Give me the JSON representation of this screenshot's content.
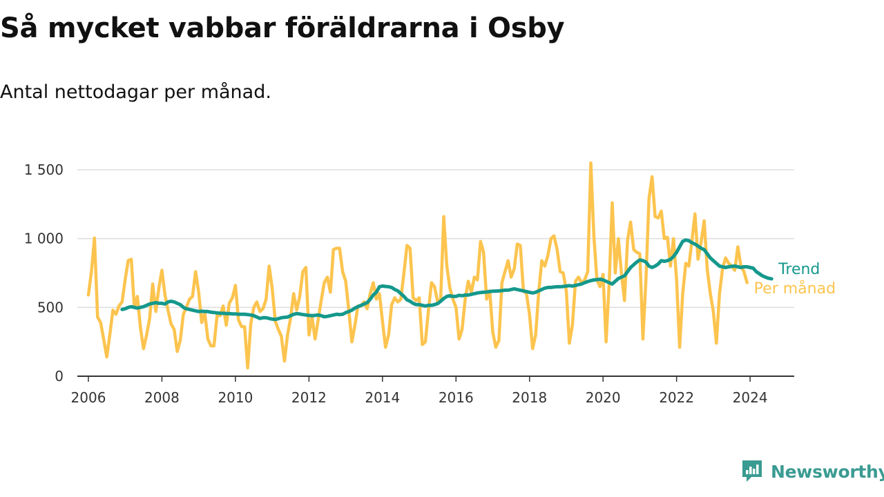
{
  "title": "Så mycket vabbar föräldrarna i Osby",
  "subtitle": "Antal nettodagar per månad.",
  "brand": {
    "name": "Newsworthy",
    "icon": "newsworthy-logo-icon"
  },
  "colors": {
    "monthly": "#fcc44f",
    "trend": "#15988c",
    "grid": "#dddddd",
    "axis": "#333333"
  },
  "chart_data": {
    "type": "line",
    "title": "Så mycket vabbar föräldrarna i Osby",
    "subtitle": "Antal nettodagar per månad.",
    "xlabel": "",
    "ylabel": "",
    "xlim": [
      2005.7,
      2025.2
    ],
    "ylim": [
      0,
      1500
    ],
    "x_ticks": [
      2006,
      2008,
      2010,
      2012,
      2014,
      2016,
      2018,
      2020,
      2022,
      2024
    ],
    "x_tick_labels": [
      "2006",
      "2008",
      "2010",
      "2012",
      "2014",
      "2016",
      "2018",
      "2020",
      "2022",
      "2024"
    ],
    "y_ticks": [
      0,
      500,
      1000,
      1500
    ],
    "y_tick_labels": [
      "0",
      "500",
      "1 000",
      "1 500"
    ],
    "grid": true,
    "legend": "direct labels at line ends (right)",
    "series": [
      {
        "name": "Per månad",
        "color": "#fcc44f",
        "start": 2006.0,
        "step": 0.083333,
        "values": [
          590,
          760,
          1005,
          430,
          390,
          270,
          140,
          300,
          480,
          450,
          510,
          540,
          700,
          840,
          850,
          500,
          580,
          350,
          200,
          300,
          420,
          670,
          470,
          640,
          770,
          590,
          480,
          380,
          340,
          180,
          260,
          450,
          500,
          560,
          580,
          760,
          610,
          390,
          460,
          270,
          220,
          220,
          440,
          440,
          510,
          370,
          530,
          570,
          660,
          410,
          360,
          360,
          60,
          380,
          500,
          540,
          470,
          490,
          560,
          800,
          640,
          400,
          340,
          290,
          110,
          300,
          420,
          600,
          480,
          580,
          760,
          790,
          300,
          430,
          270,
          410,
          550,
          680,
          720,
          610,
          920,
          930,
          930,
          760,
          690,
          480,
          250,
          370,
          510,
          510,
          540,
          490,
          600,
          680,
          560,
          600,
          400,
          210,
          300,
          520,
          570,
          540,
          560,
          750,
          950,
          930,
          570,
          550,
          570,
          230,
          250,
          480,
          680,
          650,
          540,
          560,
          1160,
          800,
          640,
          560,
          500,
          270,
          340,
          560,
          690,
          610,
          720,
          700,
          980,
          900,
          560,
          620,
          320,
          210,
          260,
          680,
          760,
          840,
          720,
          780,
          960,
          950,
          620,
          600,
          450,
          200,
          300,
          610,
          840,
          800,
          880,
          1000,
          1020,
          920,
          760,
          750,
          620,
          240,
          370,
          690,
          720,
          680,
          700,
          760,
          1550,
          1020,
          700,
          650,
          740,
          250,
          680,
          1260,
          750,
          1000,
          750,
          550,
          990,
          1120,
          920,
          900,
          890,
          270,
          700,
          1290,
          1450,
          1160,
          1150,
          1200,
          1000,
          1010,
          800,
          1000,
          700,
          210,
          600,
          820,
          800,
          980,
          1180,
          850,
          970,
          1130,
          780,
          600,
          470,
          240,
          600,
          780,
          860,
          820,
          800,
          770,
          940,
          800,
          760,
          680
        ]
      },
      {
        "name": "Trend",
        "color": "#15988c",
        "start": 2006.9167,
        "step": 0.083333,
        "values": [
          485,
          490,
          500,
          505,
          500,
          495,
          500,
          505,
          515,
          525,
          530,
          535,
          530,
          530,
          525,
          540,
          545,
          540,
          530,
          520,
          500,
          490,
          485,
          480,
          475,
          470,
          472,
          470,
          470,
          465,
          463,
          460,
          458,
          457,
          455,
          455,
          453,
          453,
          450,
          450,
          450,
          448,
          445,
          440,
          430,
          420,
          425,
          425,
          420,
          415,
          413,
          418,
          425,
          428,
          430,
          440,
          450,
          455,
          452,
          448,
          445,
          442,
          440,
          442,
          445,
          440,
          432,
          435,
          440,
          445,
          450,
          448,
          450,
          462,
          470,
          480,
          495,
          505,
          515,
          525,
          535,
          560,
          590,
          610,
          650,
          655,
          652,
          650,
          645,
          630,
          620,
          600,
          580,
          555,
          545,
          530,
          520,
          520,
          515,
          510,
          515,
          515,
          520,
          528,
          545,
          565,
          580,
          585,
          580,
          580,
          588,
          585,
          590,
          590,
          595,
          600,
          605,
          608,
          610,
          612,
          615,
          618,
          618,
          620,
          622,
          625,
          625,
          630,
          635,
          630,
          625,
          620,
          615,
          610,
          605,
          610,
          620,
          630,
          640,
          645,
          645,
          648,
          650,
          650,
          652,
          655,
          658,
          655,
          660,
          665,
          670,
          680,
          688,
          695,
          700,
          702,
          705,
          700,
          690,
          680,
          670,
          690,
          710,
          720,
          730,
          760,
          790,
          810,
          830,
          845,
          840,
          830,
          800,
          790,
          800,
          815,
          840,
          835,
          840,
          850,
          870,
          900,
          940,
          980,
          990,
          985,
          970,
          960,
          945,
          930,
          920,
          890,
          860,
          840,
          820,
          800,
          795,
          790,
          795,
          798,
          800,
          795,
          790,
          795,
          795,
          790,
          785,
          760,
          745,
          730,
          720,
          712,
          708
        ]
      }
    ]
  }
}
